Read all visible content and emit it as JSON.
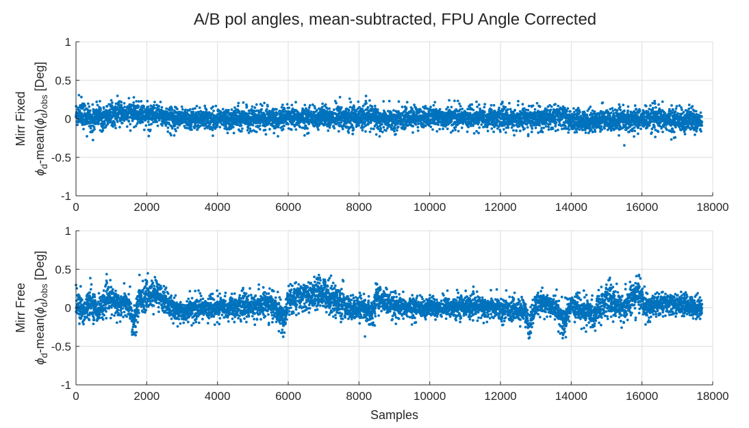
{
  "title": "A/B pol angles, mean-subtracted, FPU Angle Corrected",
  "colors": {
    "marker": "#0072BD",
    "axis": "#262626",
    "grid": "#dcdcdc"
  },
  "chart_data": [
    {
      "type": "scatter",
      "title": "A/B pol angles, mean-subtracted, FPU Angle Corrected",
      "ylabel": {
        "line1": "Mirr Fixed",
        "phi": "ϕ",
        "d": "d",
        "mean_open": "-mean(",
        "close": ")",
        "obs": "obs",
        "unit": "[Deg]"
      },
      "xlabel": "",
      "xlim": [
        0,
        18000
      ],
      "ylim": [
        -1,
        1
      ],
      "xticks": [
        0,
        2000,
        4000,
        6000,
        8000,
        10000,
        12000,
        14000,
        16000,
        18000
      ],
      "yticks": [
        -1,
        -0.5,
        0,
        0.5,
        1
      ],
      "ytick_labels": [
        "-1",
        "-0.5",
        "0",
        "0.5",
        "1"
      ],
      "grid": true,
      "n_samples": 17700,
      "y_range_typical": [
        -0.3,
        0.3
      ],
      "envelope_x": [
        0,
        200,
        400,
        450,
        600,
        1000,
        1500,
        2000,
        2500,
        3000,
        4000,
        5000,
        6000,
        7000,
        7500,
        8000,
        8500,
        8600,
        9000,
        10000,
        11000,
        12000,
        13000,
        13800,
        14000,
        15000,
        16000,
        17000,
        17700
      ],
      "envelope_center": [
        0.05,
        0.05,
        0.02,
        -0.05,
        0.05,
        0.05,
        0.08,
        0.05,
        0.03,
        0.0,
        0.0,
        0.0,
        0.0,
        0.02,
        0.02,
        0.02,
        0.03,
        -0.02,
        0.0,
        0.02,
        0.02,
        0.0,
        0.0,
        0.03,
        -0.03,
        -0.02,
        0.0,
        -0.02,
        -0.02
      ],
      "envelope_halfwidth": [
        0.18,
        0.18,
        0.15,
        0.2,
        0.15,
        0.15,
        0.15,
        0.15,
        0.15,
        0.14,
        0.14,
        0.14,
        0.15,
        0.15,
        0.18,
        0.15,
        0.17,
        0.17,
        0.14,
        0.14,
        0.14,
        0.14,
        0.15,
        0.17,
        0.15,
        0.15,
        0.16,
        0.17,
        0.17
      ]
    },
    {
      "type": "scatter",
      "title": "",
      "ylabel": {
        "line1": "Mirr Free",
        "phi": "ϕ",
        "d": "d",
        "mean_open": "-mean(",
        "close": ")",
        "obs": "obs",
        "unit": "[Deg]"
      },
      "xlabel": "Samples",
      "xlim": [
        0,
        18000
      ],
      "ylim": [
        -1,
        1
      ],
      "xticks": [
        0,
        2000,
        4000,
        6000,
        8000,
        10000,
        12000,
        14000,
        16000,
        18000
      ],
      "yticks": [
        -1,
        -0.5,
        0,
        0.5,
        1
      ],
      "ytick_labels": [
        "-1",
        "-0.5",
        "0",
        "0.5",
        "1"
      ],
      "grid": true,
      "n_samples": 17700,
      "y_range_typical": [
        -0.55,
        0.48
      ],
      "envelope_x": [
        0,
        200,
        400,
        600,
        900,
        1200,
        1500,
        1600,
        1800,
        2000,
        2300,
        2500,
        2800,
        3500,
        4500,
        5500,
        5800,
        5900,
        6000,
        6500,
        7000,
        7500,
        7600,
        8000,
        8400,
        8500,
        9000,
        10000,
        11000,
        12000,
        12700,
        12800,
        13000,
        13500,
        13800,
        14000,
        14400,
        14600,
        15000,
        15500,
        15900,
        16100,
        16500,
        17000,
        17700
      ],
      "envelope_center": [
        0.05,
        -0.05,
        0.1,
        -0.05,
        0.12,
        0.05,
        0.05,
        -0.2,
        0.12,
        0.15,
        0.18,
        0.1,
        -0.05,
        0.0,
        0.0,
        0.05,
        -0.1,
        -0.15,
        0.1,
        0.15,
        0.2,
        0.05,
        0.0,
        0.0,
        -0.05,
        0.15,
        0.0,
        0.0,
        0.02,
        0.0,
        -0.05,
        -0.25,
        0.05,
        0.05,
        -0.2,
        0.05,
        -0.05,
        -0.1,
        0.1,
        0.0,
        0.2,
        0.0,
        0.05,
        0.05,
        0.0
      ],
      "envelope_halfwidth": [
        0.2,
        0.2,
        0.2,
        0.15,
        0.2,
        0.18,
        0.18,
        0.2,
        0.2,
        0.2,
        0.18,
        0.18,
        0.15,
        0.15,
        0.15,
        0.18,
        0.2,
        0.22,
        0.2,
        0.2,
        0.22,
        0.25,
        0.18,
        0.15,
        0.18,
        0.2,
        0.15,
        0.14,
        0.15,
        0.15,
        0.15,
        0.2,
        0.15,
        0.15,
        0.2,
        0.15,
        0.18,
        0.2,
        0.2,
        0.18,
        0.22,
        0.18,
        0.15,
        0.15,
        0.15
      ]
    }
  ]
}
